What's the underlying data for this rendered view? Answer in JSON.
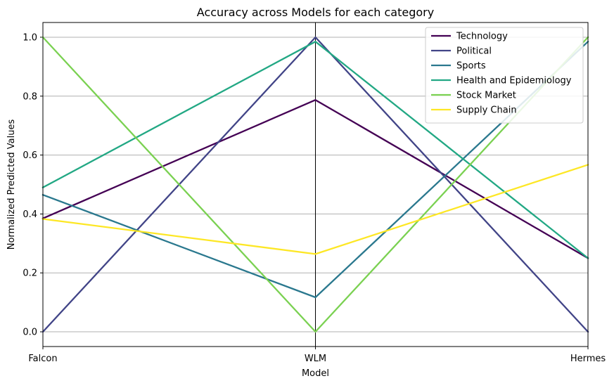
{
  "chart_data": {
    "type": "line",
    "title": "Accuracy across Models for each category",
    "xlabel": "Model",
    "ylabel": "Normalized Predicted Values",
    "categories": [
      "Falcon",
      "WLM",
      "Hermes"
    ],
    "ylim": [
      -0.05,
      1.05
    ],
    "yticks": [
      "0.0",
      "0.2",
      "0.4",
      "0.6",
      "0.8",
      "1.0"
    ],
    "grid": true,
    "legend_position": "top-right",
    "series": [
      {
        "name": "Technology",
        "color": "#440154",
        "values": [
          0.385,
          0.787,
          0.25
        ]
      },
      {
        "name": "Political",
        "color": "#414487",
        "values": [
          0.0,
          1.0,
          0.0
        ]
      },
      {
        "name": "Sports",
        "color": "#2a788e",
        "values": [
          0.465,
          0.117,
          0.985
        ]
      },
      {
        "name": "Health and Epidemiology",
        "color": "#22a884",
        "values": [
          0.49,
          0.985,
          0.25
        ]
      },
      {
        "name": "Stock Market",
        "color": "#7ad151",
        "values": [
          1.0,
          0.0,
          1.0
        ]
      },
      {
        "name": "Supply Chain",
        "color": "#fde725",
        "values": [
          0.383,
          0.264,
          0.567
        ]
      }
    ]
  }
}
